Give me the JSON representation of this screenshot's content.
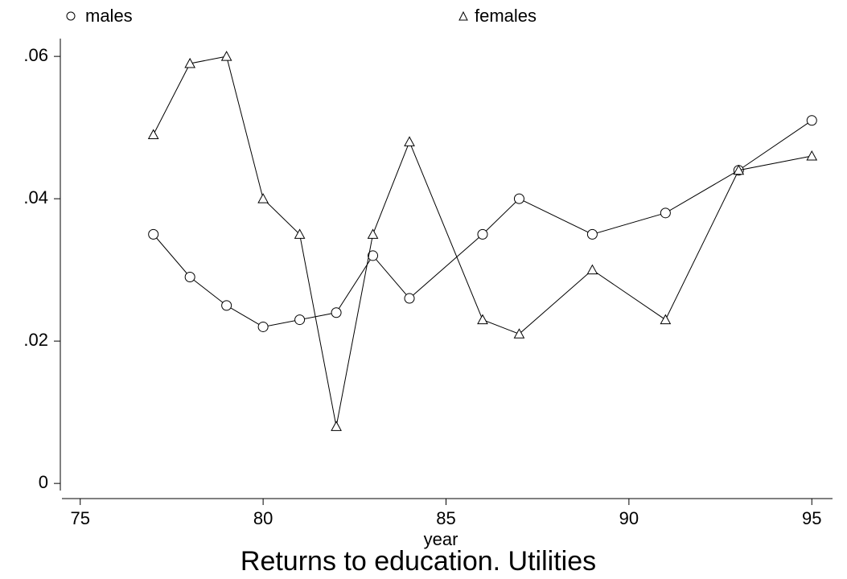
{
  "chart_data": {
    "type": "line",
    "title": "Returns to education. Utilities",
    "x_label": "year",
    "x": [
      77,
      78,
      79,
      80,
      81,
      82,
      83,
      84,
      86,
      87,
      89,
      91,
      93,
      95
    ],
    "series": [
      {
        "name": "males",
        "marker": "circle",
        "color": "#000000",
        "values": [
          0.035,
          0.029,
          0.025,
          0.022,
          0.023,
          0.024,
          0.032,
          0.026,
          0.035,
          0.04,
          0.035,
          0.038,
          0.044,
          0.051
        ]
      },
      {
        "name": "females",
        "marker": "triangle",
        "color": "#000000",
        "values": [
          0.049,
          0.059,
          0.06,
          0.04,
          0.035,
          0.008,
          0.035,
          0.048,
          0.023,
          0.021,
          0.03,
          0.023,
          0.044,
          0.046
        ]
      }
    ],
    "xlim": [
      74.5,
      95.5
    ],
    "xticks": [
      75,
      80,
      85,
      90,
      95
    ],
    "ylim": [
      -0.001,
      0.0625
    ],
    "yticks": [
      0,
      {
        "value": 0.02,
        "label": ".02"
      },
      {
        "value": 0.04,
        "label": ".04"
      },
      {
        "value": 0.06,
        "label": ".06"
      }
    ]
  }
}
